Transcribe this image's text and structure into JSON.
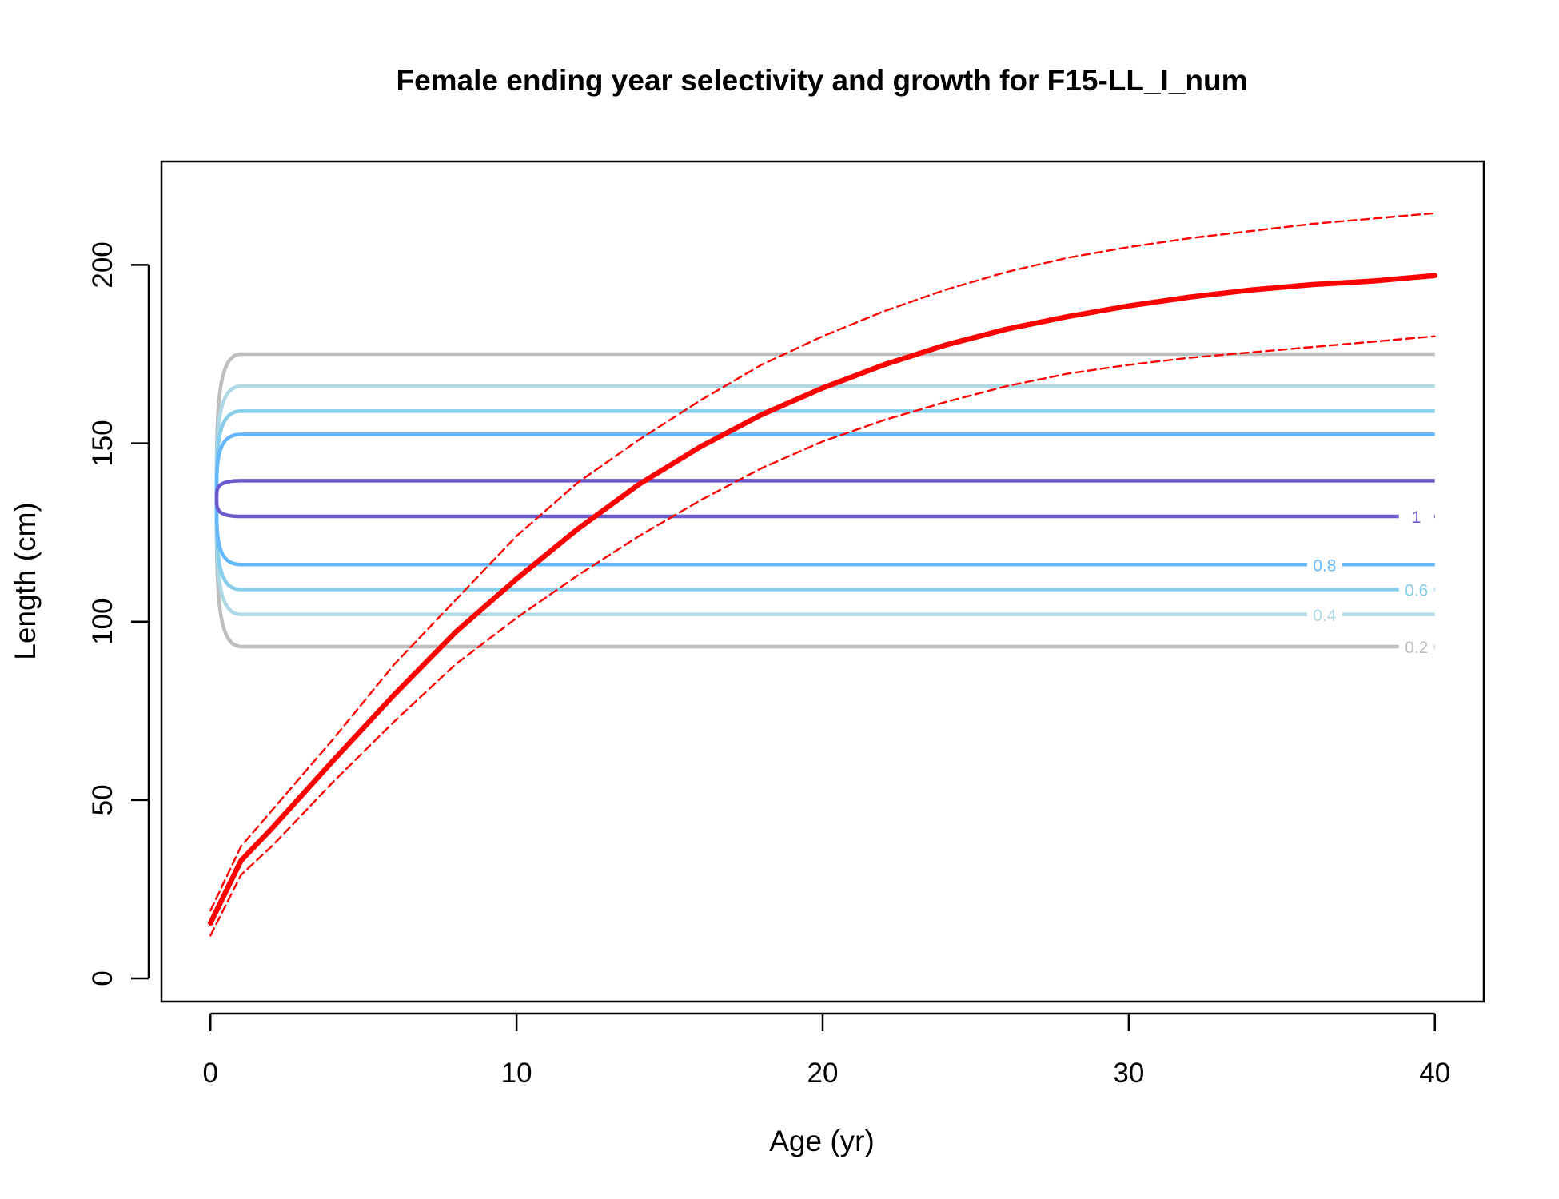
{
  "chart_data": {
    "type": "line",
    "title": "Female ending year selectivity and growth for F15-LL_I_num",
    "xlabel": "Age (yr)",
    "ylabel": "Length (cm)",
    "xlim": [
      -1.6,
      41.6
    ],
    "ylim": [
      -6.5,
      229
    ],
    "x_ticks": [
      0,
      10,
      20,
      30,
      40
    ],
    "y_ticks": [
      0,
      50,
      100,
      150,
      200
    ],
    "grid": false,
    "legend": "none",
    "selectivity_contours": [
      {
        "level": "0.2",
        "color": "#bebebe",
        "lower": 93,
        "upper": 175,
        "label_x": 39.4
      },
      {
        "level": "0.4",
        "color": "#add8e6",
        "lower": 102,
        "upper": 166,
        "label_x": 36.4
      },
      {
        "level": "0.6",
        "color": "#87ceeb",
        "lower": 109,
        "upper": 159,
        "label_x": 39.4
      },
      {
        "level": "0.8",
        "color": "#63b8ff",
        "lower": 116,
        "upper": 152.5,
        "label_x": 36.4
      },
      {
        "level": "1",
        "color": "#6a5acd",
        "lower": 129.5,
        "upper": 139.5,
        "label_x": 39.4
      }
    ],
    "series": [
      {
        "role": "growth",
        "color": "#ff0000",
        "style": "solid",
        "x": [
          0,
          1,
          2,
          4,
          6,
          8,
          10,
          12,
          14,
          16,
          18,
          20,
          22,
          24,
          26,
          28,
          30,
          32,
          34,
          36,
          38,
          40
        ],
        "values": [
          15.5,
          33,
          42,
          61,
          79.5,
          97,
          112,
          126,
          138.5,
          149,
          158,
          165.5,
          172,
          177.5,
          182,
          185.5,
          188.5,
          191,
          193,
          194.5,
          195.5,
          197
        ]
      },
      {
        "role": "upper",
        "color": "#ff0000",
        "style": "dashed",
        "x": [
          0,
          1,
          2,
          4,
          6,
          8,
          10,
          12,
          14,
          16,
          18,
          20,
          22,
          24,
          26,
          28,
          30,
          32,
          34,
          36,
          38,
          40
        ],
        "values": [
          19,
          37,
          47,
          67,
          88,
          106,
          124,
          139,
          151,
          162,
          172,
          180,
          187,
          193,
          198,
          202,
          205,
          207.5,
          209.5,
          211.5,
          213,
          214.5
        ]
      },
      {
        "role": "lower",
        "color": "#ff0000",
        "style": "dashed",
        "x": [
          0,
          1,
          2,
          4,
          6,
          8,
          10,
          12,
          14,
          16,
          18,
          20,
          22,
          24,
          26,
          28,
          30,
          32,
          34,
          36,
          38,
          40
        ],
        "values": [
          12,
          29,
          37,
          55,
          72,
          88,
          101,
          113,
          124,
          134,
          143,
          150.5,
          156.5,
          161.5,
          166,
          169.5,
          172,
          174,
          175.5,
          177,
          178.5,
          180
        ]
      }
    ]
  }
}
